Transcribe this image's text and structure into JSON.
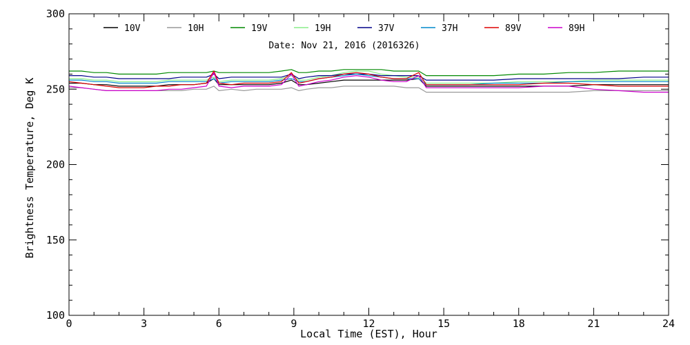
{
  "chart_data": {
    "type": "line",
    "title": "",
    "subtitle": "Date: Nov 21, 2016 (2016326)",
    "xlabel": "Local Time (EST), Hour",
    "ylabel": "Brightness Temperature, Deg K",
    "xlim": [
      0,
      24
    ],
    "ylim": [
      100,
      300
    ],
    "xticks": [
      0,
      3,
      6,
      9,
      12,
      15,
      18,
      21,
      24
    ],
    "xtick_labels": [
      "0",
      "3",
      "6",
      "9",
      "12",
      "15",
      "18",
      "21",
      "24"
    ],
    "yticks": [
      100,
      150,
      200,
      250,
      300
    ],
    "ytick_labels": [
      "100",
      "150",
      "200",
      "250",
      "300"
    ],
    "grid": false,
    "legend_position": "top",
    "x": [
      0,
      0.5,
      1,
      1.5,
      2,
      2.5,
      3,
      3.5,
      4,
      4.5,
      5,
      5.5,
      5.8,
      6,
      6.5,
      7,
      7.5,
      8,
      8.5,
      8.9,
      9.2,
      9.5,
      10,
      10.5,
      11,
      11.5,
      12,
      12.5,
      13,
      13.5,
      14,
      14.3,
      15,
      16,
      17,
      18,
      19,
      20,
      21,
      22,
      23,
      24
    ],
    "series": [
      {
        "name": "10V",
        "color": "#000000",
        "values": [
          254,
          254,
          253,
          253,
          252,
          252,
          252,
          252,
          253,
          253,
          253,
          254,
          257,
          253,
          253,
          253,
          253,
          253,
          254,
          256,
          253,
          253,
          254,
          255,
          256,
          256,
          256,
          256,
          256,
          256,
          257,
          252,
          252,
          252,
          252,
          252,
          252,
          252,
          253,
          253,
          253,
          253
        ]
      },
      {
        "name": "10H",
        "color": "#999999",
        "values": [
          251,
          251,
          250,
          249,
          249,
          249,
          249,
          249,
          249,
          249,
          250,
          250,
          252,
          249,
          250,
          249,
          250,
          250,
          250,
          251,
          249,
          250,
          251,
          251,
          252,
          252,
          252,
          252,
          252,
          251,
          251,
          248,
          248,
          248,
          248,
          248,
          248,
          248,
          249,
          249,
          249,
          249
        ]
      },
      {
        "name": "19V",
        "color": "#008800",
        "values": [
          262,
          262,
          261,
          261,
          260,
          260,
          260,
          260,
          261,
          261,
          261,
          261,
          262,
          261,
          261,
          261,
          261,
          261,
          262,
          263,
          261,
          261,
          262,
          262,
          263,
          263,
          263,
          263,
          262,
          262,
          262,
          259,
          259,
          259,
          259,
          260,
          260,
          261,
          261,
          262,
          262,
          262
        ]
      },
      {
        "name": "19H",
        "color": "#88ee88",
        "values": [
          257,
          257,
          256,
          256,
          255,
          255,
          255,
          255,
          256,
          256,
          256,
          256,
          258,
          255,
          256,
          256,
          256,
          256,
          257,
          259,
          256,
          256,
          258,
          259,
          261,
          262,
          262,
          260,
          259,
          258,
          258,
          254,
          254,
          254,
          254,
          255,
          255,
          255,
          256,
          256,
          256,
          256
        ]
      },
      {
        "name": "37V",
        "color": "#000088",
        "values": [
          259,
          259,
          258,
          258,
          257,
          257,
          257,
          257,
          257,
          258,
          258,
          258,
          260,
          257,
          258,
          258,
          258,
          258,
          258,
          260,
          257,
          258,
          259,
          259,
          260,
          260,
          260,
          259,
          259,
          259,
          259,
          256,
          256,
          256,
          256,
          257,
          257,
          257,
          257,
          257,
          258,
          258
        ]
      },
      {
        "name": "37H",
        "color": "#0088cc",
        "values": [
          256,
          256,
          255,
          255,
          254,
          254,
          254,
          254,
          255,
          255,
          255,
          255,
          257,
          254,
          255,
          255,
          255,
          255,
          256,
          257,
          255,
          255,
          257,
          258,
          259,
          260,
          259,
          258,
          257,
          257,
          257,
          253,
          253,
          253,
          254,
          254,
          254,
          255,
          255,
          255,
          255,
          255
        ]
      },
      {
        "name": "89V",
        "color": "#dd0000",
        "values": [
          255,
          254,
          253,
          252,
          251,
          251,
          251,
          252,
          252,
          253,
          253,
          254,
          262,
          254,
          253,
          254,
          254,
          254,
          255,
          261,
          254,
          255,
          257,
          258,
          260,
          261,
          260,
          258,
          257,
          257,
          261,
          253,
          253,
          253,
          253,
          253,
          254,
          254,
          253,
          252,
          252,
          252
        ]
      },
      {
        "name": "89H",
        "color": "#cc00cc",
        "values": [
          252,
          251,
          250,
          249,
          249,
          249,
          249,
          249,
          250,
          250,
          251,
          252,
          261,
          252,
          251,
          252,
          252,
          252,
          253,
          260,
          252,
          253,
          255,
          256,
          258,
          259,
          258,
          256,
          255,
          255,
          259,
          251,
          251,
          251,
          251,
          251,
          252,
          252,
          250,
          249,
          248,
          248
        ]
      }
    ]
  }
}
